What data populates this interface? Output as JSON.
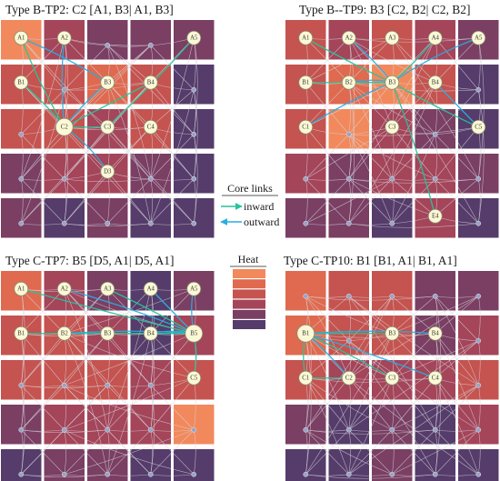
{
  "colors": {
    "heat": [
      "#f2895c",
      "#df6a4f",
      "#c5534f",
      "#a4455a",
      "#7a3f63",
      "#553c6a"
    ],
    "edge": "#d8d6dc",
    "core_in": "#26c49a",
    "core_out": "#27aee0",
    "node_fill": "#fbf8d6",
    "node_stroke": "#8c8a70",
    "small_node": "#9aa3c4"
  },
  "panels": [
    {
      "id": "tl",
      "title": "Type B-TP2: C2 [A1, B3| A1, B3]",
      "heat": [
        [
          0,
          3,
          4,
          4,
          4
        ],
        [
          2,
          2,
          1,
          2,
          5
        ],
        [
          2,
          2,
          3,
          2,
          5
        ],
        [
          4,
          3,
          3,
          4,
          5
        ],
        [
          4,
          5,
          4,
          5,
          5
        ]
      ],
      "labeled": [
        {
          "label": "A1",
          "r": 0,
          "c": 0
        },
        {
          "label": "A2",
          "r": 0,
          "c": 1
        },
        {
          "label": "A5",
          "r": 0,
          "c": 4
        },
        {
          "label": "B1",
          "r": 1,
          "c": 0
        },
        {
          "label": "B3",
          "r": 1,
          "c": 2
        },
        {
          "label": "B4",
          "r": 1,
          "c": 3
        },
        {
          "label": "C2",
          "r": 2,
          "c": 1,
          "big": true
        },
        {
          "label": "C3",
          "r": 2,
          "c": 2
        },
        {
          "label": "C4",
          "r": 2,
          "c": 3
        },
        {
          "label": "D3",
          "r": 3,
          "c": 2
        }
      ],
      "core": [
        {
          "from": "A1",
          "to": "C2"
        },
        {
          "from": "B3",
          "to": "C2"
        },
        {
          "from": "B1",
          "to": "C2"
        },
        {
          "from": "A2",
          "to": "C2"
        },
        {
          "from": "B4",
          "to": "C2"
        },
        {
          "from": "C2",
          "to": "D3"
        },
        {
          "from": "C2",
          "to": "C3"
        },
        {
          "from": "A1",
          "to": "B3"
        },
        {
          "from": "A5",
          "to": "C3"
        }
      ]
    },
    {
      "id": "tr",
      "title": "Type B--TP9: B3 [C2, B2| C2, B2]",
      "heat": [
        [
          2,
          3,
          2,
          3,
          4
        ],
        [
          2,
          1,
          0,
          2,
          5
        ],
        [
          2,
          0,
          3,
          4,
          5
        ],
        [
          3,
          4,
          3,
          3,
          4
        ],
        [
          4,
          4,
          5,
          3,
          5
        ]
      ],
      "labeled": [
        {
          "label": "A1",
          "r": 0,
          "c": 0
        },
        {
          "label": "A2",
          "r": 0,
          "c": 1
        },
        {
          "label": "A3",
          "r": 0,
          "c": 2
        },
        {
          "label": "A4",
          "r": 0,
          "c": 3
        },
        {
          "label": "A5",
          "r": 0,
          "c": 4
        },
        {
          "label": "B1",
          "r": 1,
          "c": 0
        },
        {
          "label": "B2",
          "r": 1,
          "c": 1
        },
        {
          "label": "B3",
          "r": 1,
          "c": 2
        },
        {
          "label": "B4",
          "r": 1,
          "c": 3
        },
        {
          "label": "C1",
          "r": 2,
          "c": 0
        },
        {
          "label": "C3",
          "r": 2,
          "c": 2
        },
        {
          "label": "C5",
          "r": 2,
          "c": 4
        },
        {
          "label": "E4",
          "r": 4,
          "c": 3
        }
      ],
      "core": [
        {
          "from": "A1",
          "to": "B3"
        },
        {
          "from": "A2",
          "to": "B3"
        },
        {
          "from": "A4",
          "to": "B3"
        },
        {
          "from": "A5",
          "to": "B3"
        },
        {
          "from": "B1",
          "to": "B3"
        },
        {
          "from": "B2",
          "to": "B3"
        },
        {
          "from": "B3",
          "to": "C5"
        },
        {
          "from": "B3",
          "to": "C1"
        },
        {
          "from": "B3",
          "to": "E4"
        },
        {
          "from": "B4",
          "to": "C5"
        }
      ]
    },
    {
      "id": "bl",
      "title": "Type C-TP7: B5 [D5, A1| D5, A1]",
      "heat": [
        [
          1,
          3,
          4,
          5,
          4
        ],
        [
          2,
          2,
          3,
          5,
          3
        ],
        [
          2,
          2,
          2,
          3,
          2
        ],
        [
          4,
          3,
          3,
          3,
          0
        ],
        [
          5,
          4,
          4,
          5,
          5
        ]
      ],
      "labeled": [
        {
          "label": "A1",
          "r": 0,
          "c": 0
        },
        {
          "label": "A2",
          "r": 0,
          "c": 1
        },
        {
          "label": "A3",
          "r": 0,
          "c": 2
        },
        {
          "label": "A4",
          "r": 0,
          "c": 3
        },
        {
          "label": "A5",
          "r": 0,
          "c": 4
        },
        {
          "label": "B1",
          "r": 1,
          "c": 0
        },
        {
          "label": "B2",
          "r": 1,
          "c": 1
        },
        {
          "label": "B3",
          "r": 1,
          "c": 2
        },
        {
          "label": "B4",
          "r": 1,
          "c": 3
        },
        {
          "label": "B5",
          "r": 1,
          "c": 4,
          "big": true
        },
        {
          "label": "C5",
          "r": 2,
          "c": 4
        }
      ],
      "core": [
        {
          "from": "A1",
          "to": "B5"
        },
        {
          "from": "A2",
          "to": "B5"
        },
        {
          "from": "A3",
          "to": "B5"
        },
        {
          "from": "A4",
          "to": "B5"
        },
        {
          "from": "B1",
          "to": "B5"
        },
        {
          "from": "B2",
          "to": "B5"
        },
        {
          "from": "B3",
          "to": "B5"
        },
        {
          "from": "B4",
          "to": "B5"
        },
        {
          "from": "B5",
          "to": "C5"
        },
        {
          "from": "A5",
          "to": "B5"
        }
      ]
    },
    {
      "id": "br",
      "title": "Type C-TP10: B1 [B1, A1| B1, A1]",
      "heat": [
        [
          1,
          2,
          2,
          4,
          4
        ],
        [
          1,
          2,
          2,
          4,
          3
        ],
        [
          2,
          3,
          3,
          3,
          2
        ],
        [
          4,
          5,
          4,
          5,
          3
        ],
        [
          5,
          5,
          4,
          5,
          5
        ]
      ],
      "labeled": [
        {
          "label": "B1",
          "r": 1,
          "c": 0,
          "big": true
        },
        {
          "label": "B3",
          "r": 1,
          "c": 2
        },
        {
          "label": "B4",
          "r": 1,
          "c": 3
        },
        {
          "label": "C1",
          "r": 2,
          "c": 0
        },
        {
          "label": "C2",
          "r": 2,
          "c": 1
        },
        {
          "label": "C3",
          "r": 2,
          "c": 2
        },
        {
          "label": "C4",
          "r": 2,
          "c": 3
        }
      ],
      "core": [
        {
          "from": "B1",
          "to": "C1"
        },
        {
          "from": "B1",
          "to": "C2"
        },
        {
          "from": "B1",
          "to": "C3"
        },
        {
          "from": "B1",
          "to": "C4"
        },
        {
          "from": "B1",
          "to": "B3"
        },
        {
          "from": "B1",
          "to": "B4"
        },
        {
          "from": "C1",
          "to": "C2"
        }
      ]
    }
  ],
  "legend": {
    "core_title": "Core links",
    "inward": "inward",
    "outward": "outward",
    "heat_title": "Heat"
  }
}
